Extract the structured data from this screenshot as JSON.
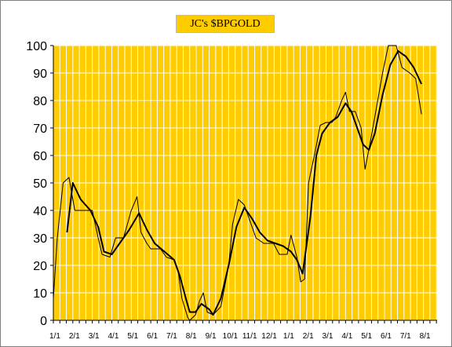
{
  "chart_data": {
    "type": "line",
    "title": "JC's $BPGOLD",
    "xlabel": "",
    "ylabel": "",
    "ylim": [
      0,
      100
    ],
    "yticks": [
      0,
      10,
      20,
      30,
      40,
      50,
      60,
      70,
      80,
      90,
      100
    ],
    "xtick_labels": [
      "1/1",
      "2/1",
      "3/1",
      "4/1",
      "5/1",
      "6/1",
      "7/1",
      "8/1",
      "9/1",
      "10/1",
      "11/1",
      "12/1",
      "1/1",
      "2/1",
      "3/1",
      "4/1",
      "5/1",
      "6/1",
      "7/1",
      "8/1"
    ],
    "grid": true,
    "background_color": "#ffcc00",
    "grid_color": "#ffffff",
    "series": [
      {
        "color": "#000000",
        "line_width": 1,
        "points": [
          [
            0.0,
            8
          ],
          [
            0.2,
            30
          ],
          [
            0.5,
            50
          ],
          [
            0.8,
            52
          ],
          [
            1.1,
            40
          ],
          [
            1.6,
            40
          ],
          [
            2.0,
            40
          ],
          [
            2.3,
            30
          ],
          [
            2.5,
            24
          ],
          [
            2.9,
            23
          ],
          [
            3.2,
            30
          ],
          [
            3.6,
            30
          ],
          [
            4.0,
            40
          ],
          [
            4.3,
            45
          ],
          [
            4.5,
            32
          ],
          [
            4.8,
            28
          ],
          [
            5.0,
            26
          ],
          [
            5.5,
            26
          ],
          [
            5.8,
            23
          ],
          [
            6.2,
            22
          ],
          [
            6.4,
            18
          ],
          [
            6.6,
            8
          ],
          [
            6.9,
            1
          ],
          [
            7.0,
            0
          ],
          [
            7.3,
            2
          ],
          [
            7.5,
            7
          ],
          [
            7.7,
            10
          ],
          [
            7.9,
            3
          ],
          [
            8.2,
            2
          ],
          [
            8.6,
            5
          ],
          [
            9.0,
            20
          ],
          [
            9.2,
            35
          ],
          [
            9.5,
            44
          ],
          [
            9.8,
            42
          ],
          [
            10.0,
            38
          ],
          [
            10.4,
            30
          ],
          [
            10.8,
            28
          ],
          [
            11.3,
            28
          ],
          [
            11.6,
            24
          ],
          [
            12.0,
            24
          ],
          [
            12.2,
            31
          ],
          [
            12.5,
            23
          ],
          [
            12.7,
            14
          ],
          [
            12.9,
            15
          ],
          [
            13.1,
            50
          ],
          [
            13.4,
            60
          ],
          [
            13.7,
            71
          ],
          [
            14.0,
            72
          ],
          [
            14.3,
            72
          ],
          [
            14.5,
            74
          ],
          [
            14.8,
            80
          ],
          [
            15.0,
            83
          ],
          [
            15.2,
            76
          ],
          [
            15.5,
            76
          ],
          [
            15.8,
            70
          ],
          [
            16.0,
            55
          ],
          [
            16.3,
            66
          ],
          [
            16.6,
            78
          ],
          [
            16.9,
            90
          ],
          [
            17.2,
            100
          ],
          [
            17.6,
            100
          ],
          [
            17.9,
            92
          ],
          [
            18.3,
            90
          ],
          [
            18.6,
            88
          ],
          [
            18.9,
            75
          ]
        ]
      },
      {
        "color": "#000000",
        "line_width": 2,
        "points": [
          [
            0.7,
            32
          ],
          [
            1.0,
            50
          ],
          [
            1.4,
            44
          ],
          [
            1.9,
            40
          ],
          [
            2.3,
            34
          ],
          [
            2.6,
            25
          ],
          [
            3.0,
            24
          ],
          [
            3.4,
            28
          ],
          [
            3.9,
            33
          ],
          [
            4.4,
            39
          ],
          [
            4.8,
            33
          ],
          [
            5.2,
            28
          ],
          [
            5.7,
            25
          ],
          [
            6.2,
            22
          ],
          [
            6.5,
            16
          ],
          [
            6.8,
            8
          ],
          [
            7.0,
            3
          ],
          [
            7.3,
            3
          ],
          [
            7.6,
            6
          ],
          [
            8.0,
            4
          ],
          [
            8.2,
            2
          ],
          [
            8.6,
            8
          ],
          [
            9.0,
            20
          ],
          [
            9.4,
            34
          ],
          [
            9.8,
            41
          ],
          [
            10.2,
            37
          ],
          [
            10.6,
            32
          ],
          [
            11.0,
            29
          ],
          [
            11.4,
            28
          ],
          [
            11.8,
            27
          ],
          [
            12.2,
            25
          ],
          [
            12.5,
            22
          ],
          [
            12.8,
            17
          ],
          [
            13.2,
            38
          ],
          [
            13.5,
            60
          ],
          [
            13.8,
            68
          ],
          [
            14.2,
            72
          ],
          [
            14.6,
            74
          ],
          [
            15.0,
            79
          ],
          [
            15.3,
            76
          ],
          [
            15.6,
            70
          ],
          [
            15.9,
            64
          ],
          [
            16.2,
            62
          ],
          [
            16.5,
            68
          ],
          [
            16.9,
            82
          ],
          [
            17.3,
            93
          ],
          [
            17.7,
            98
          ],
          [
            18.1,
            96
          ],
          [
            18.5,
            92
          ],
          [
            18.9,
            86
          ]
        ]
      }
    ]
  }
}
